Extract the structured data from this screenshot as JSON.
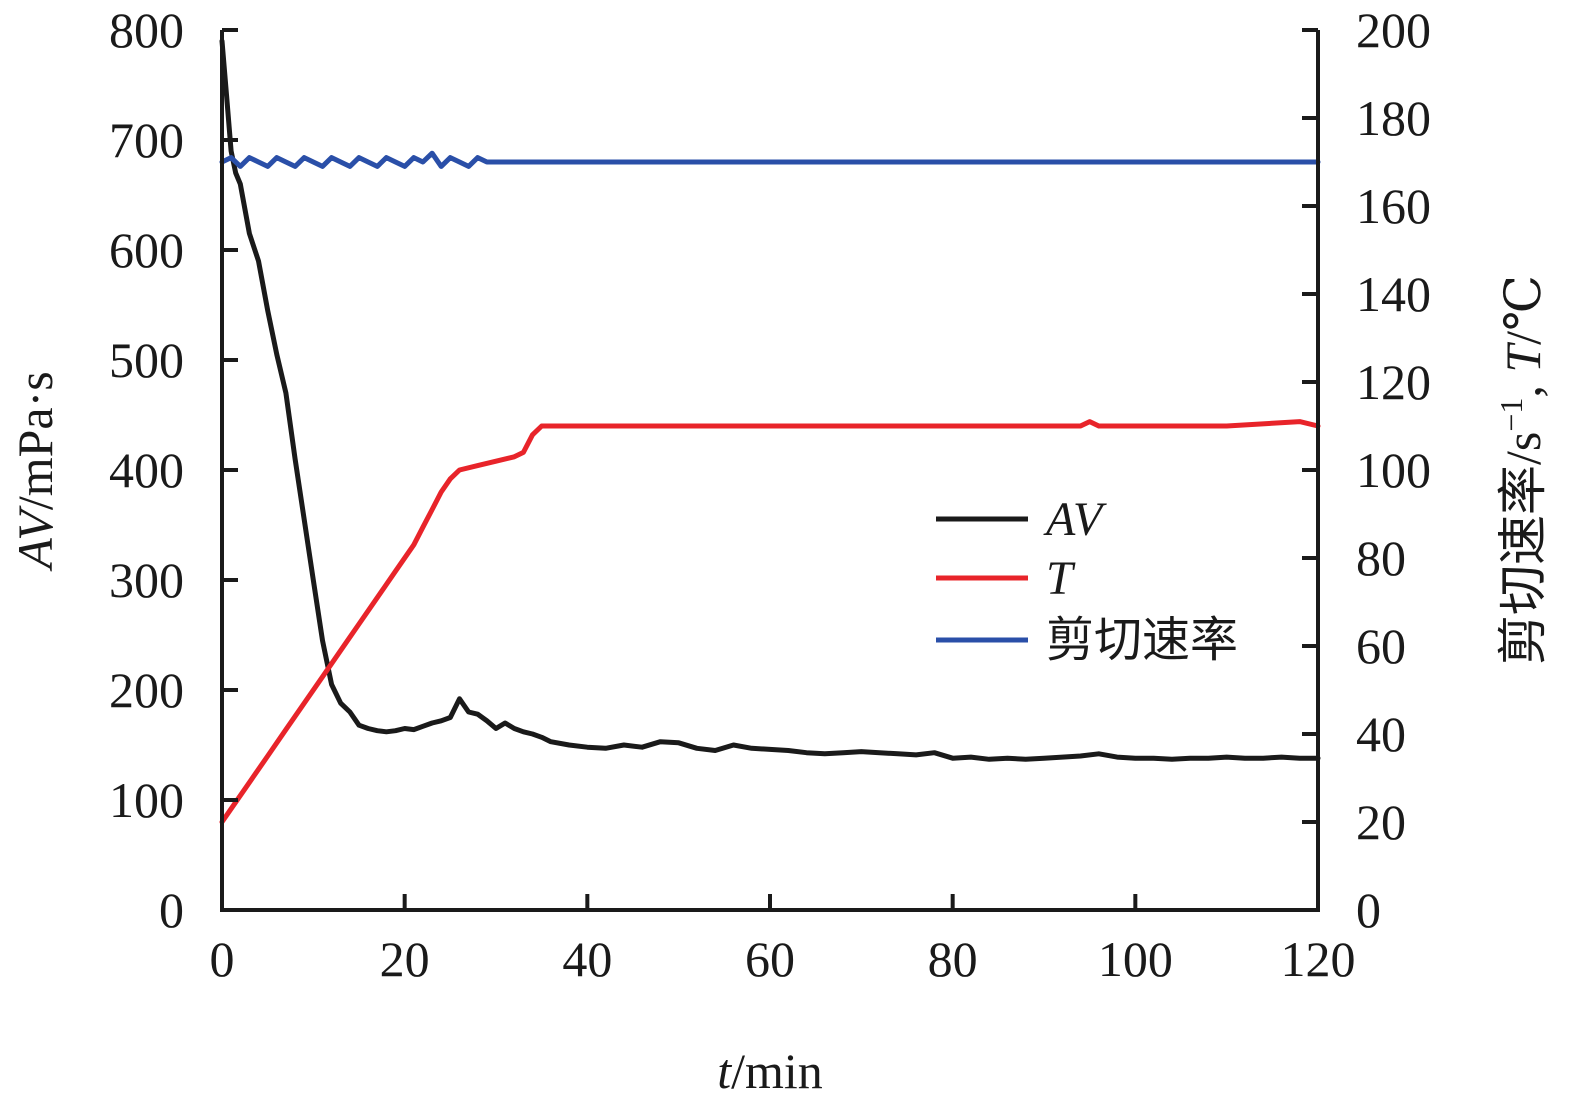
{
  "chart_data": {
    "type": "line",
    "x_axis": {
      "label_italic": "t",
      "label_rest": "/min",
      "range": [
        0,
        120
      ],
      "ticks": [
        0,
        20,
        40,
        60,
        80,
        100,
        120
      ]
    },
    "y_left": {
      "label_italic": "AV",
      "label_rest": "/mPa·s",
      "range": [
        0,
        800
      ],
      "ticks": [
        0,
        100,
        200,
        300,
        400,
        500,
        600,
        700,
        800
      ]
    },
    "y_right": {
      "label_cn": "剪切速率",
      "label_unit": "/s",
      "label_sup": "−1",
      "label_sep": ", ",
      "label_italic": "T",
      "label_end": "/℃",
      "range": [
        0,
        200
      ],
      "ticks": [
        0,
        20,
        40,
        60,
        80,
        100,
        120,
        140,
        160,
        180,
        200
      ]
    },
    "grid": false,
    "legend_position": "center-right",
    "series": [
      {
        "name": "AV",
        "italic": true,
        "axis": "left",
        "color": "#1a1a1a",
        "x": [
          0,
          0.5,
          1,
          1.5,
          2,
          3,
          4,
          5,
          6,
          7,
          8,
          9,
          10,
          11,
          12,
          13,
          14,
          15,
          16,
          17,
          18,
          19,
          20,
          21,
          22,
          23,
          24,
          25,
          26,
          27,
          28,
          29,
          30,
          31,
          32,
          33,
          34,
          35,
          36,
          38,
          40,
          42,
          44,
          46,
          48,
          50,
          52,
          54,
          56,
          58,
          60,
          62,
          64,
          66,
          68,
          70,
          72,
          74,
          76,
          78,
          80,
          82,
          84,
          86,
          88,
          90,
          92,
          94,
          96,
          98,
          100,
          102,
          104,
          106,
          108,
          110,
          112,
          114,
          116,
          118,
          120
        ],
        "y": [
          790,
          740,
          690,
          670,
          660,
          615,
          590,
          545,
          505,
          470,
          410,
          355,
          300,
          245,
          205,
          188,
          180,
          168,
          165,
          163,
          162,
          163,
          165,
          164,
          167,
          170,
          172,
          175,
          192,
          180,
          178,
          172,
          165,
          170,
          165,
          162,
          160,
          157,
          153,
          150,
          148,
          147,
          150,
          148,
          153,
          152,
          147,
          145,
          150,
          147,
          146,
          145,
          143,
          142,
          143,
          144,
          143,
          142,
          141,
          143,
          138,
          139,
          137,
          138,
          137,
          138,
          139,
          140,
          142,
          139,
          138,
          138,
          137,
          138,
          138,
          139,
          138,
          138,
          139,
          138,
          138
        ]
      },
      {
        "name": "T",
        "italic": true,
        "axis": "right",
        "color": "#e8242a",
        "x": [
          0,
          1,
          3,
          5,
          7,
          9,
          11,
          13,
          15,
          17,
          19,
          21,
          22,
          23,
          24,
          25,
          26,
          28,
          30,
          32,
          33,
          34,
          35,
          36,
          40,
          50,
          60,
          70,
          80,
          90,
          94,
          95,
          96,
          100,
          110,
          118,
          120
        ],
        "y": [
          20,
          23,
          29,
          35,
          41,
          47,
          53,
          59,
          65,
          71,
          77,
          83,
          87,
          91,
          95,
          98,
          100,
          101,
          102,
          103,
          104,
          108,
          110,
          110,
          110,
          110,
          110,
          110,
          110,
          110,
          110,
          111,
          110,
          110,
          110,
          111,
          110
        ]
      },
      {
        "name": "剪切速率",
        "italic": false,
        "axis": "right",
        "color": "#2a4fa8",
        "x": [
          0,
          1,
          2,
          3,
          4,
          5,
          6,
          7,
          8,
          9,
          10,
          11,
          12,
          13,
          14,
          15,
          16,
          17,
          18,
          19,
          20,
          21,
          22,
          23,
          24,
          25,
          26,
          27,
          28,
          29,
          30,
          40,
          60,
          80,
          100,
          120
        ],
        "y": [
          170,
          171,
          169,
          171,
          170,
          169,
          171,
          170,
          169,
          171,
          170,
          169,
          171,
          170,
          169,
          171,
          170,
          169,
          171,
          170,
          169,
          171,
          170,
          172,
          169,
          171,
          170,
          169,
          171,
          170,
          170,
          170,
          170,
          170,
          170,
          170
        ]
      }
    ]
  }
}
